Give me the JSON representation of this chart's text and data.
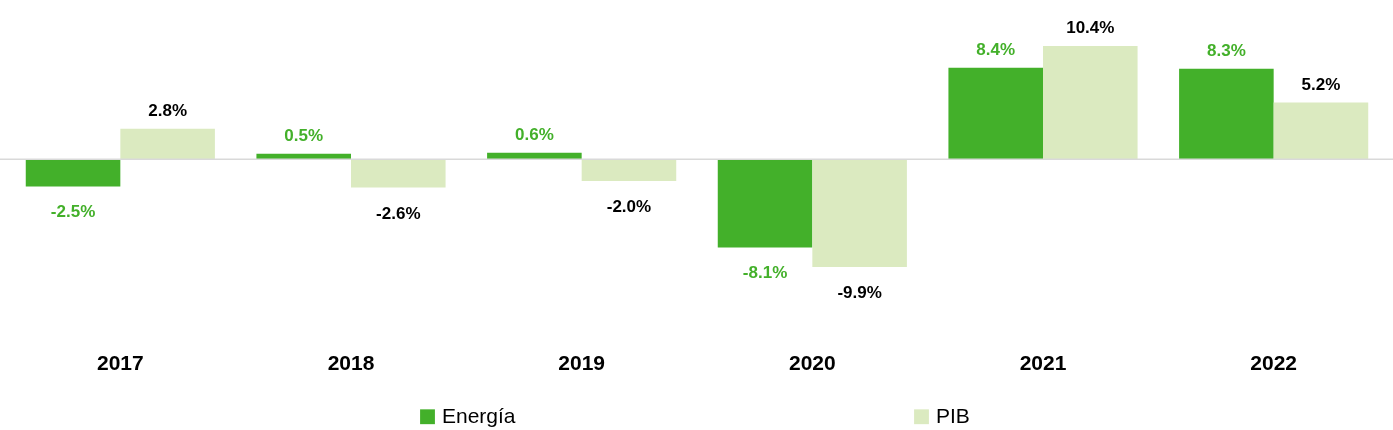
{
  "chart_data": {
    "type": "bar",
    "categories": [
      "2017",
      "2018",
      "2019",
      "2020",
      "2021",
      "2022"
    ],
    "series": [
      {
        "name": "Energía",
        "color": "#43b02a",
        "values": [
          -2.5,
          0.5,
          0.6,
          -8.1,
          8.4,
          8.3
        ],
        "value_labels": [
          "-2.5%",
          "0.5%",
          "0.6%",
          "-8.1%",
          "8.4%",
          "8.3%"
        ]
      },
      {
        "name": "PIB",
        "color": "#dbeac0",
        "values": [
          2.8,
          -2.6,
          -2.0,
          -9.9,
          10.4,
          5.2
        ],
        "value_labels": [
          "2.8%",
          "-2.6%",
          "-2.0%",
          "-9.9%",
          "10.4%",
          "5.2%"
        ]
      }
    ],
    "legend": "bottom"
  }
}
